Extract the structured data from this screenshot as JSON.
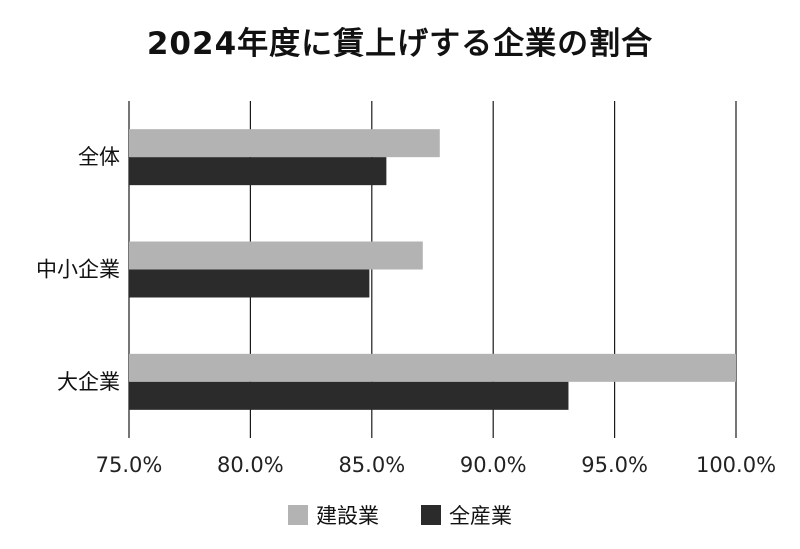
{
  "chart_data": {
    "type": "bar",
    "orientation": "horizontal",
    "title": "2024年度に賃上げする企業の割合",
    "categories": [
      "全体",
      "中小企業",
      "大企業"
    ],
    "series": [
      {
        "name": "建設業",
        "color": "#b3b3b3",
        "values": [
          87.8,
          87.1,
          100.0
        ]
      },
      {
        "name": "全産業",
        "color": "#2b2b2b",
        "values": [
          85.6,
          84.9,
          93.1
        ]
      }
    ],
    "xlim": [
      75,
      100
    ],
    "xticks": [
      "75.0%",
      "80.0%",
      "85.0%",
      "90.0%",
      "95.0%",
      "100.0%"
    ],
    "tick_values": [
      75,
      80,
      85,
      90,
      95,
      100
    ],
    "grid": "vertical",
    "legend_position": "bottom"
  }
}
